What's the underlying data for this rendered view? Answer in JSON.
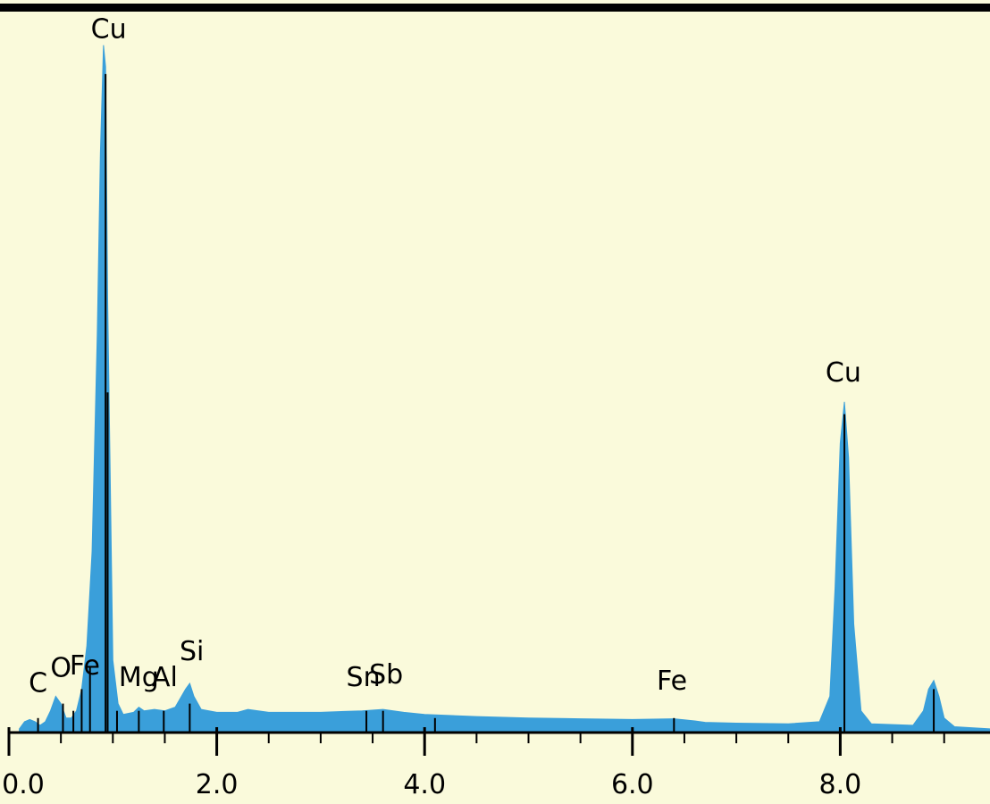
{
  "chart_data": {
    "type": "area",
    "color": "#3a9fda",
    "marker_color": "#000000",
    "xlim": [
      0,
      9.45
    ],
    "ylim": [
      0,
      100
    ],
    "xticks": [
      {
        "value": 0,
        "label": "0.0"
      },
      {
        "value": 2,
        "label": "2.0"
      },
      {
        "value": 4,
        "label": "4.0"
      },
      {
        "value": 6,
        "label": "6.0"
      },
      {
        "value": 8,
        "label": "8.0"
      }
    ],
    "xminorticks": [
      0.5,
      1,
      1.5,
      2.5,
      3,
      3.5,
      4.5,
      5,
      5.5,
      6.5,
      7,
      7.5,
      8.5,
      9
    ],
    "x": [
      0.1,
      0.15,
      0.2,
      0.25,
      0.3,
      0.35,
      0.4,
      0.45,
      0.5,
      0.55,
      0.6,
      0.65,
      0.7,
      0.75,
      0.8,
      0.85,
      0.88,
      0.91,
      0.93,
      0.95,
      0.98,
      1.0,
      1.05,
      1.1,
      1.2,
      1.25,
      1.3,
      1.4,
      1.5,
      1.6,
      1.7,
      1.74,
      1.78,
      1.85,
      2.0,
      2.2,
      2.3,
      2.5,
      3.0,
      3.4,
      3.6,
      3.8,
      4.0,
      4.5,
      5.0,
      5.5,
      6.0,
      6.4,
      6.6,
      6.7,
      7.0,
      7.5,
      7.8,
      7.9,
      7.95,
      8.0,
      8.04,
      8.08,
      8.13,
      8.2,
      8.3,
      8.7,
      8.8,
      8.85,
      8.9,
      8.95,
      9.0,
      9.1,
      9.45
    ],
    "values": [
      0.5,
      1.5,
      1.8,
      1.5,
      1.0,
      1.5,
      3.0,
      5.0,
      4.0,
      2.0,
      2.0,
      3.0,
      6.0,
      12,
      25,
      55,
      80,
      95,
      92,
      60,
      30,
      10,
      4,
      2.5,
      2.8,
      3.5,
      3.0,
      3.2,
      3.0,
      3.5,
      6.0,
      6.8,
      5,
      3.2,
      2.8,
      2.8,
      3.2,
      2.8,
      2.8,
      3.0,
      3.2,
      2.8,
      2.5,
      2.2,
      2.0,
      1.9,
      1.8,
      1.9,
      1.6,
      1.4,
      1.3,
      1.2,
      1.5,
      5,
      20,
      40,
      45.7,
      38,
      15,
      3,
      1.2,
      1.0,
      3,
      6,
      7.2,
      5,
      2,
      0.8,
      0.5
    ],
    "markers": [
      {
        "x": 0.28,
        "value": 2
      },
      {
        "x": 0.52,
        "value": 4
      },
      {
        "x": 0.62,
        "value": 3
      },
      {
        "x": 0.7,
        "value": 6
      },
      {
        "x": 0.78,
        "value": 9
      },
      {
        "x": 0.93,
        "value": 91
      },
      {
        "x": 0.95,
        "value": 47
      },
      {
        "x": 1.04,
        "value": 3
      },
      {
        "x": 1.25,
        "value": 3
      },
      {
        "x": 1.49,
        "value": 3
      },
      {
        "x": 1.74,
        "value": 4
      },
      {
        "x": 3.44,
        "value": 3
      },
      {
        "x": 3.6,
        "value": 3
      },
      {
        "x": 4.1,
        "value": 2
      },
      {
        "x": 6.4,
        "value": 2
      },
      {
        "x": 8.04,
        "value": 44
      },
      {
        "x": 8.9,
        "value": 6
      }
    ],
    "annotations": [
      {
        "text": "C",
        "x": 0.28,
        "y": 5.6
      },
      {
        "text": "O",
        "x": 0.5,
        "y": 7.7
      },
      {
        "text": "Fe",
        "x": 0.73,
        "y": 8
      },
      {
        "text": "Cu",
        "x": 0.96,
        "y": 96
      },
      {
        "text": "Mg",
        "x": 1.25,
        "y": 6.4
      },
      {
        "text": "Al",
        "x": 1.5,
        "y": 6.4
      },
      {
        "text": "Si",
        "x": 1.76,
        "y": 10
      },
      {
        "text": "Sn",
        "x": 3.41,
        "y": 6.4
      },
      {
        "text": "Sb",
        "x": 3.63,
        "y": 6.8
      },
      {
        "text": "Fe",
        "x": 6.38,
        "y": 5.9
      },
      {
        "text": "Cu",
        "x": 8.03,
        "y": 48.5
      }
    ]
  }
}
